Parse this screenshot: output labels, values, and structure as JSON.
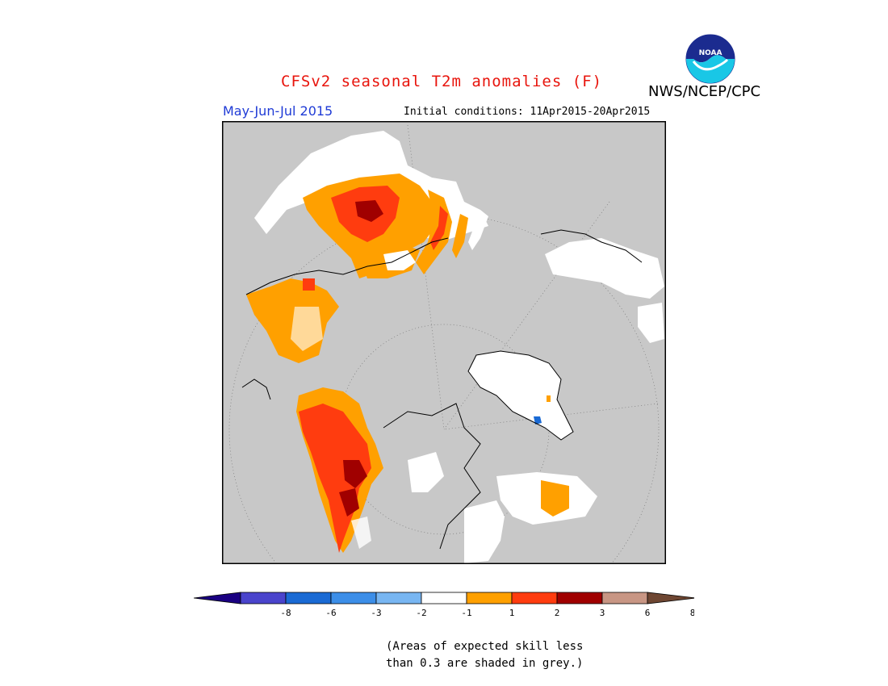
{
  "header": {
    "title": "CFSv2 seasonal T2m anomalies (F)",
    "org": "NWS/NCEP/CPC",
    "season": "May-Jun-Jul 2015",
    "initial_conditions": "Initial conditions: 11Apr2015-20Apr2015",
    "logo_text": "NOAA"
  },
  "legend": {
    "colors": [
      "#1a0082",
      "#4a44cc",
      "#1a6ad4",
      "#3c8ee8",
      "#78b6f2",
      "#ffffff",
      "#ffa000",
      "#ff3c0f",
      "#a00000",
      "#c89684",
      "#6e4632"
    ],
    "labels": [
      "-8",
      "-6",
      "-3",
      "-2",
      "-1",
      "1",
      "2",
      "3",
      "6",
      "8"
    ]
  },
  "note": {
    "line1": "(Areas of expected skill less",
    "line2": "than 0.3 are shaded in grey.)"
  },
  "map_colors": {
    "grey": "#c8c8c8",
    "white": "#ffffff",
    "orange": "#ffa000",
    "red": "#ff3c0f",
    "darkred": "#a00000",
    "blue": "#1a6ad4"
  }
}
